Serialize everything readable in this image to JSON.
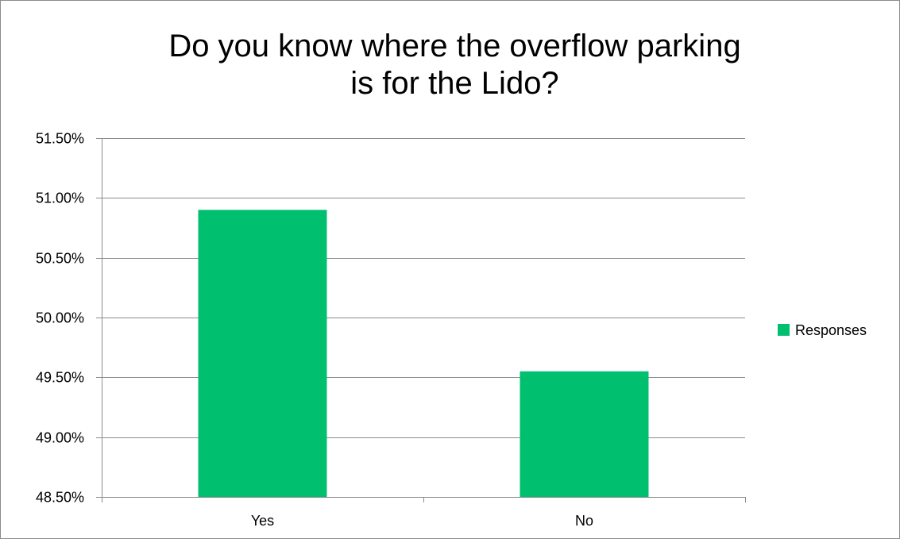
{
  "chart_data": {
    "type": "bar",
    "title": "Do you know where the overflow parking is for the Lido?",
    "categories": [
      "Yes",
      "No"
    ],
    "series": [
      {
        "name": "Responses",
        "values": [
          50.9,
          49.55
        ],
        "color": "#00c070"
      }
    ],
    "ylim": [
      48.5,
      51.5
    ],
    "yticks": [
      "48.50%",
      "49.00%",
      "49.50%",
      "50.00%",
      "50.50%",
      "51.00%",
      "51.50%"
    ],
    "ytick_values": [
      48.5,
      49.0,
      49.5,
      50.0,
      50.5,
      51.0,
      51.5
    ],
    "xlabel": "",
    "ylabel": "",
    "grid": true,
    "legend": "right"
  }
}
